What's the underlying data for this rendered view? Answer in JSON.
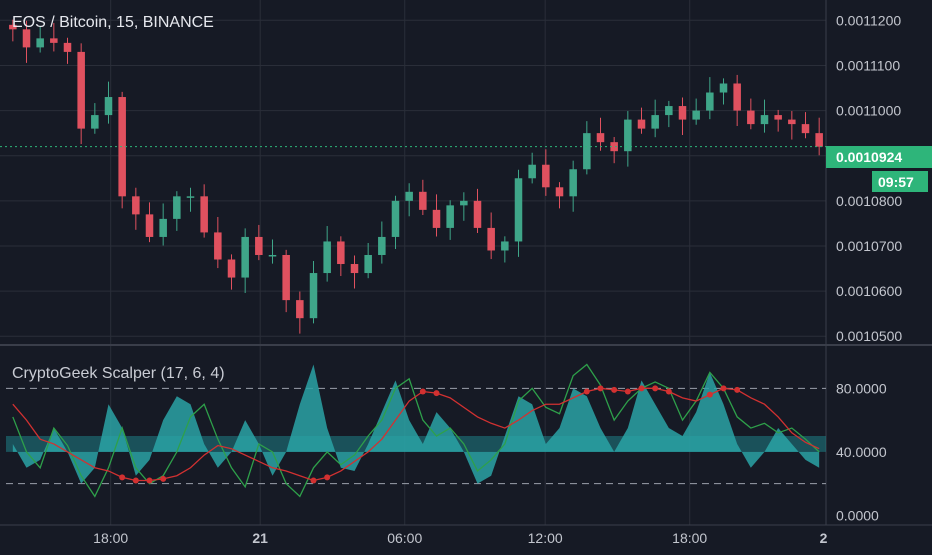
{
  "colors": {
    "background": "#161a25",
    "grid": "#2a2e39",
    "axis_text": "#c3c6ce",
    "candle_up": "#3fa689",
    "candle_down": "#e0515f",
    "price_badge": "#2eb57a",
    "osc_fill": "#2aa3a6",
    "osc_band": "#1f7f86",
    "osc_green": "#2ea04a",
    "osc_red": "#d23131"
  },
  "main_chart": {
    "title": "EOS / Bitcoin, 15, BINANCE",
    "current_price_label": "0.0010924",
    "countdown_label": "09:57",
    "y_ticks": [
      "0.0011200",
      "0.0011100",
      "0.0011000",
      "0.0010900",
      "0.0010800",
      "0.0010700",
      "0.0010600",
      "0.0010500"
    ]
  },
  "oscillator": {
    "title": "CryptoGeek Scalper (17, 6, 4)",
    "y_ticks": [
      "80.0000",
      "40.0000",
      "0.0000"
    ]
  },
  "time_axis": {
    "labels": [
      "18:00",
      "21",
      "06:00",
      "12:00",
      "18:00",
      "2"
    ]
  },
  "chart_data": [
    {
      "type": "candlestick",
      "title": "EOS / Bitcoin, 15, BINANCE",
      "x": [
        "t01",
        "t02",
        "t03",
        "t04",
        "t05",
        "t06",
        "t07",
        "t08",
        "t09",
        "t10",
        "t11",
        "t12",
        "t13",
        "t14",
        "t15",
        "t16",
        "t17",
        "t18",
        "t19",
        "t20",
        "t21",
        "t22",
        "t23",
        "t24",
        "t25",
        "t26",
        "t27",
        "t28",
        "t29",
        "t30",
        "t31",
        "t32",
        "t33",
        "t34",
        "t35",
        "t36",
        "t37",
        "t38",
        "t39",
        "t40",
        "t41",
        "t42",
        "t43",
        "t44",
        "t45",
        "t46",
        "t47",
        "t48",
        "t49",
        "t50",
        "t51",
        "t52",
        "t53",
        "t54",
        "t55",
        "t56",
        "t57",
        "t58",
        "t59",
        "t60"
      ],
      "close": [
        0.001118,
        0.001114,
        0.001116,
        0.001115,
        0.001113,
        0.001096,
        0.001099,
        0.001103,
        0.001081,
        0.001077,
        0.001072,
        0.001076,
        0.001081,
        0.001081,
        0.001073,
        0.001067,
        0.001063,
        0.001072,
        0.001068,
        0.001068,
        0.001058,
        0.001054,
        0.001064,
        0.001071,
        0.001066,
        0.001064,
        0.001068,
        0.001072,
        0.00108,
        0.001082,
        0.001078,
        0.001074,
        0.001079,
        0.00108,
        0.001074,
        0.001069,
        0.001071,
        0.001085,
        0.001088,
        0.001083,
        0.001081,
        0.001087,
        0.001095,
        0.001093,
        0.001091,
        0.001098,
        0.001096,
        0.001099,
        0.001101,
        0.001098,
        0.0011,
        0.001104,
        0.001106,
        0.0011,
        0.001097,
        0.001099,
        0.001098,
        0.001097,
        0.001095,
        0.001092
      ],
      "ylim": [
        0.0010485,
        0.0011245
      ]
    },
    {
      "type": "line",
      "title": "CryptoGeek Scalper (17, 6, 4)",
      "x": [
        "t01",
        "t02",
        "t03",
        "t04",
        "t05",
        "t06",
        "t07",
        "t08",
        "t09",
        "t10",
        "t11",
        "t12",
        "t13",
        "t14",
        "t15",
        "t16",
        "t17",
        "t18",
        "t19",
        "t20",
        "t21",
        "t22",
        "t23",
        "t24",
        "t25",
        "t26",
        "t27",
        "t28",
        "t29",
        "t30",
        "t31",
        "t32",
        "t33",
        "t34",
        "t35",
        "t36",
        "t37",
        "t38",
        "t39",
        "t40",
        "t41",
        "t42",
        "t43",
        "t44",
        "t45",
        "t46",
        "t47",
        "t48",
        "t49",
        "t50",
        "t51",
        "t52",
        "t53",
        "t54",
        "t55",
        "t56",
        "t57",
        "t58",
        "t59",
        "t60"
      ],
      "series": [
        {
          "values": [
            62,
            40,
            30,
            55,
            44,
            25,
            12,
            30,
            55,
            30,
            20,
            25,
            40,
            62,
            70,
            48,
            30,
            18,
            45,
            40,
            20,
            12,
            30,
            40,
            32,
            38,
            50,
            60,
            80,
            86,
            60,
            50,
            55,
            45,
            28,
            35,
            45,
            72,
            80,
            68,
            64,
            88,
            95,
            82,
            60,
            72,
            80,
            84,
            80,
            60,
            72,
            90,
            80,
            62,
            55,
            58,
            52,
            55,
            48,
            40
          ]
        },
        {
          "values": [
            70,
            60,
            48,
            45,
            40,
            35,
            30,
            28,
            24,
            22,
            22,
            23,
            25,
            30,
            38,
            44,
            42,
            38,
            34,
            30,
            28,
            25,
            22,
            24,
            28,
            34,
            40,
            48,
            60,
            72,
            78,
            77,
            74,
            68,
            62,
            58,
            55,
            60,
            66,
            70,
            70,
            74,
            78,
            80,
            79,
            78,
            80,
            80,
            78,
            74,
            72,
            76,
            80,
            79,
            74,
            70,
            62,
            52,
            46,
            42
          ]
        },
        {
          "values": [
            45,
            30,
            35,
            55,
            40,
            20,
            30,
            70,
            55,
            25,
            35,
            60,
            75,
            70,
            45,
            30,
            40,
            60,
            45,
            25,
            40,
            70,
            95,
            55,
            30,
            28,
            45,
            65,
            85,
            60,
            45,
            65,
            55,
            40,
            20,
            25,
            50,
            75,
            70,
            45,
            55,
            80,
            75,
            55,
            40,
            55,
            85,
            70,
            55,
            50,
            65,
            90,
            70,
            45,
            30,
            40,
            55,
            45,
            35,
            30
          ]
        }
      ],
      "ylim": [
        -6,
        106
      ]
    }
  ]
}
